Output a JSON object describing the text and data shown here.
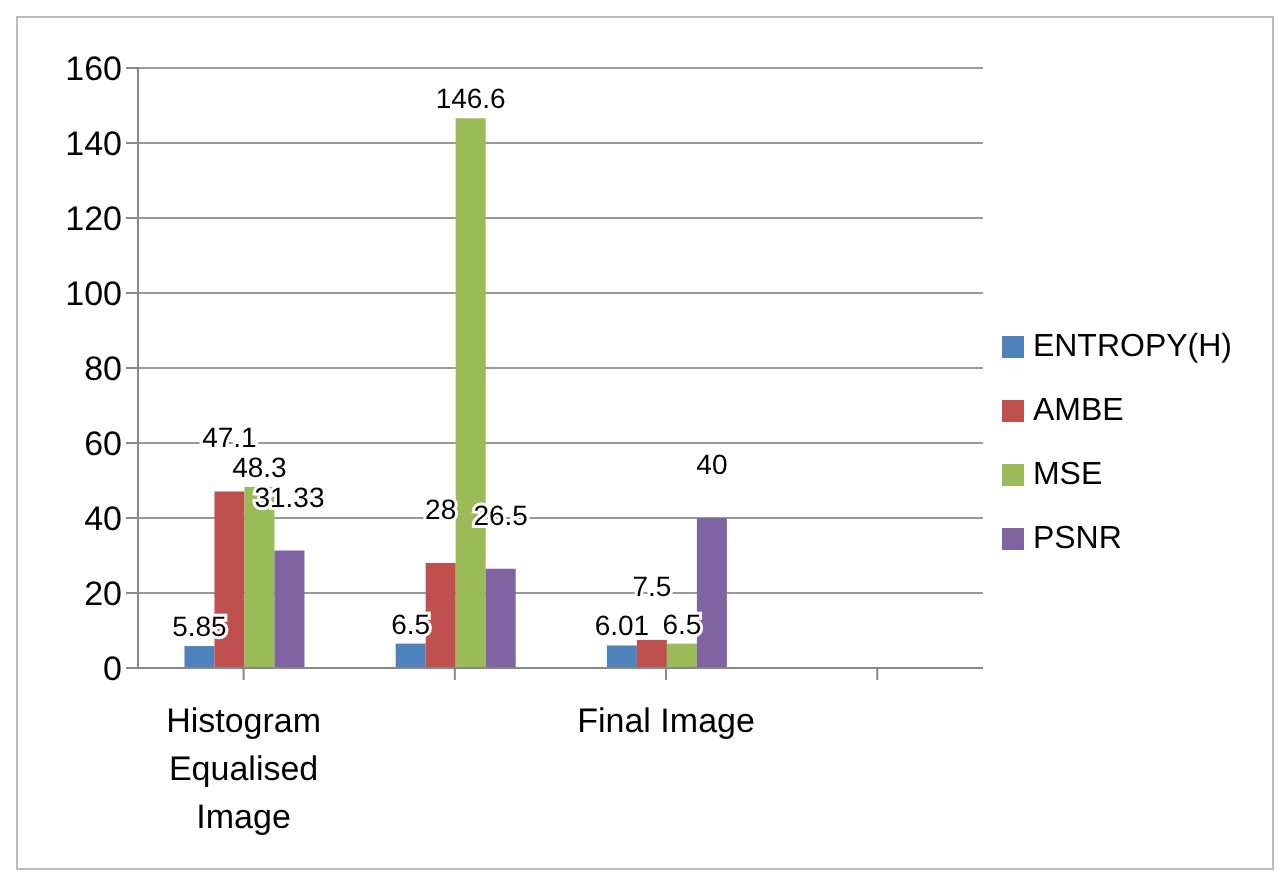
{
  "chart_data": {
    "type": "bar",
    "categories": [
      "Histogram Equalised Image",
      null,
      "Final Image",
      null
    ],
    "series": [
      {
        "name": "ENTROPY(H)",
        "color": "#4f81bd",
        "values": [
          5.85,
          6.5,
          6.01,
          null
        ]
      },
      {
        "name": "AMBE",
        "color": "#c0504d",
        "values": [
          47.1,
          28,
          7.5,
          null
        ]
      },
      {
        "name": "MSE",
        "color": "#9bbb59",
        "values": [
          48.3,
          146.6,
          6.5,
          null
        ]
      },
      {
        "name": "PSNR",
        "color": "#8064a2",
        "values": [
          31.33,
          26.5,
          40,
          null
        ]
      }
    ],
    "ylim": [
      0,
      160
    ],
    "yticks": [
      0,
      20,
      40,
      60,
      80,
      100,
      120,
      140,
      160
    ],
    "grid": "y",
    "legend": "right",
    "data_labels": true
  }
}
